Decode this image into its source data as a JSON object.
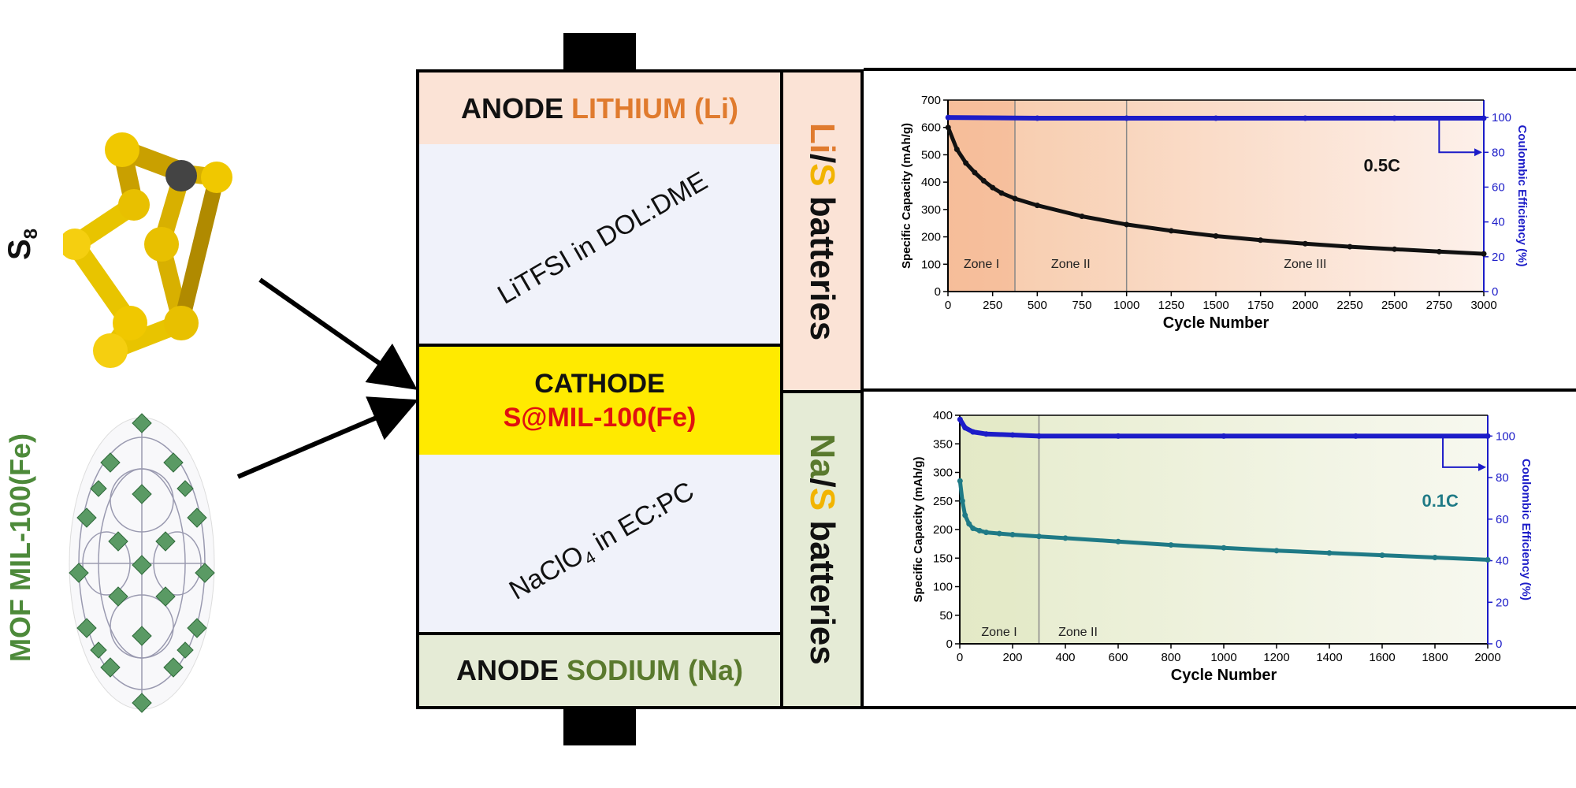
{
  "left": {
    "s8_label": "S",
    "s8_sub": "8",
    "mof_label": "MOF MIL-100(Fe)"
  },
  "cell": {
    "anode_top_word": "ANODE",
    "anode_top_metal": "LITHIUM (Li)",
    "electrolyte_top": "LiTFSI in DOL:DME",
    "cathode_word": "CATHODE",
    "cathode_material": "S@MIL-100(Fe)",
    "electrolyte_bottom_pre": "NaClO",
    "electrolyte_bottom_sub": "4",
    "electrolyte_bottom_post": " in EC:PC",
    "anode_bottom_word": "ANODE",
    "anode_bottom_metal": "SODIUM (Na)"
  },
  "side": {
    "li_label_a": "Li",
    "li_label_slash": "/",
    "li_label_b": "S",
    "li_label_c": " batteries",
    "na_label_a": "Na",
    "na_label_slash": "/",
    "na_label_b": "S",
    "na_label_c": " batteries"
  },
  "colors": {
    "lithium": "#e07b2e",
    "sodium": "#5a7a2e",
    "sulfur": "#f2b400",
    "cathode_fill": "#ffea00",
    "cathode_text": "#e01010",
    "anode_top_fill": "#fbe3d6",
    "anode_bottom_fill": "#e5ebd6",
    "electrolyte_fill": "#f0f2fa",
    "ce_blue": "#1c1cc8",
    "li_capacity": "#111111",
    "na_capacity": "#1f7a86"
  },
  "chart_data": [
    {
      "type": "line",
      "xlabel": "Cycle Number",
      "ylabel": "Specific Capacity (mAh/g)",
      "y2label": "Coulombic Efficiency (%)",
      "xlim": [
        0,
        3000
      ],
      "ylim": [
        0,
        700
      ],
      "y2lim": [
        0,
        110
      ],
      "xticks": [
        0,
        250,
        500,
        750,
        1000,
        1250,
        1500,
        1750,
        2000,
        2250,
        2500,
        2750,
        3000
      ],
      "yticks": [
        0,
        100,
        200,
        300,
        400,
        500,
        600,
        700
      ],
      "y2ticks": [
        0,
        20,
        40,
        60,
        80,
        100
      ],
      "rate_label": "0.5C",
      "zones": [
        {
          "label": "Zone I",
          "from": 0,
          "to": 375
        },
        {
          "label": "Zone II",
          "from": 375,
          "to": 1000
        },
        {
          "label": "Zone III",
          "from": 1000,
          "to": 3000
        }
      ],
      "series": [
        {
          "axis": "left",
          "x": [
            1,
            50,
            100,
            150,
            200,
            250,
            300,
            375,
            500,
            750,
            1000,
            1250,
            1500,
            1750,
            2000,
            2250,
            2500,
            2750,
            3000
          ],
          "values": [
            600,
            520,
            470,
            435,
            405,
            380,
            360,
            340,
            315,
            275,
            245,
            222,
            203,
            188,
            175,
            164,
            155,
            146,
            138
          ]
        },
        {
          "axis": "right",
          "x": [
            1,
            500,
            1000,
            1500,
            2000,
            2500,
            3000
          ],
          "values": [
            100,
            99.6,
            99.6,
            99.6,
            99.6,
            99.6,
            99.6
          ]
        }
      ]
    },
    {
      "type": "line",
      "xlabel": "Cycle Number",
      "ylabel": "Specific Capacity (mAh/g)",
      "y2label": "Coulombic Efficiency (%)",
      "xlim": [
        0,
        2000
      ],
      "ylim": [
        0,
        400
      ],
      "y2lim": [
        0,
        110
      ],
      "xticks": [
        0,
        200,
        400,
        600,
        800,
        1000,
        1200,
        1400,
        1600,
        1800,
        2000
      ],
      "yticks": [
        0,
        50,
        100,
        150,
        200,
        250,
        300,
        350,
        400
      ],
      "y2ticks": [
        0,
        20,
        40,
        60,
        80,
        100
      ],
      "rate_label": "0.1C",
      "zones": [
        {
          "label": "Zone I",
          "from": 0,
          "to": 300
        },
        {
          "label": "Zone II",
          "from": 300,
          "to": 2000
        }
      ],
      "series": [
        {
          "axis": "left",
          "x": [
            1,
            10,
            20,
            35,
            50,
            75,
            100,
            150,
            200,
            300,
            400,
            600,
            800,
            1000,
            1200,
            1400,
            1600,
            1800,
            2000
          ],
          "values": [
            285,
            250,
            225,
            210,
            202,
            198,
            195,
            193,
            191,
            188,
            185,
            179,
            173,
            168,
            163,
            159,
            155,
            151,
            147
          ]
        },
        {
          "axis": "right",
          "x": [
            1,
            20,
            50,
            100,
            200,
            300,
            600,
            1000,
            1500,
            2000
          ],
          "values": [
            108,
            104,
            102,
            101,
            100.5,
            100,
            100,
            100,
            100,
            100
          ]
        }
      ]
    }
  ]
}
